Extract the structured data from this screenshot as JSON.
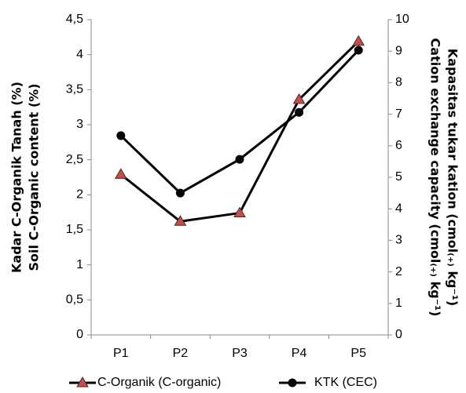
{
  "chart_data": {
    "type": "line",
    "categories": [
      "P1",
      "P2",
      "P3",
      "P4",
      "P5"
    ],
    "y_title": [
      "Kadar C-Organik Tanah (%)",
      "Soil C-Organic content (%)"
    ],
    "y2_title": [
      "Kapasitas tukar kation (cmol₍₊₎ kg⁻¹)",
      "Cation exchange capacity (cmol₍₊₎ kg⁻¹)"
    ],
    "ylim": [
      0,
      4.5
    ],
    "yticks": [
      0,
      {
        "value": 0.5,
        "label": "0,5"
      },
      1,
      {
        "value": 1.5,
        "label": "1,5"
      },
      2,
      {
        "value": 2.5,
        "label": "2,5"
      },
      3,
      {
        "value": 3.5,
        "label": "3,5"
      },
      4,
      {
        "value": 4.5,
        "label": "4,5"
      }
    ],
    "y2lim": [
      0,
      10
    ],
    "y2ticks": [
      0,
      1,
      2,
      3,
      4,
      5,
      6,
      7,
      8,
      9,
      10
    ],
    "series": [
      {
        "name": "C-Organik (C-organic)",
        "color": "#000000",
        "marker": "triangle",
        "marker_color": "#c0504d",
        "values": [
          2.29,
          1.62,
          1.74,
          3.36,
          4.19
        ]
      },
      {
        "name": "KTK (CEC)",
        "color": "#000000",
        "marker": "circle",
        "marker_color": "#000000",
        "axis": "y2",
        "values": [
          6.32,
          4.5,
          5.57,
          7.06,
          9.03
        ]
      }
    ]
  }
}
